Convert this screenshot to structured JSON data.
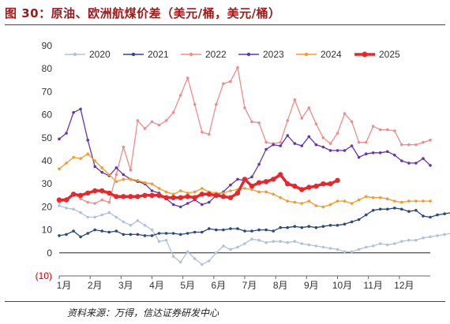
{
  "header": {
    "title": "图 30：原油、欧洲航煤价差（美元/桶，美元/桶）",
    "source": "资料来源：万得，信达证券研发中心"
  },
  "chart_data": {
    "type": "line",
    "ylim": [
      -10,
      90
    ],
    "yticks": [
      "(10)",
      "0",
      "10",
      "20",
      "30",
      "40",
      "50",
      "60",
      "70",
      "80",
      "90"
    ],
    "xticks": [
      "1月",
      "2月",
      "3月",
      "4月",
      "5月",
      "6月",
      "7月",
      "8月",
      "9月",
      "10月",
      "11月",
      "12月"
    ],
    "legend_position": "top",
    "x_unit": "week of year",
    "series": [
      {
        "name": "2020",
        "color": "#b4c2d8",
        "marker": "circle",
        "values": [
          20.5,
          19.5,
          19.0,
          17.5,
          15.5,
          15.5,
          16.5,
          17.5,
          15.5,
          13.5,
          12.0,
          14.0,
          12.0,
          10.0,
          5.0,
          5.5,
          -1.5,
          -4.0,
          0.5,
          -2.5,
          -5.0,
          -3.5,
          0.0,
          3.0,
          1.5,
          2.5,
          4.0,
          6.0,
          5.5,
          4.5,
          5.0,
          5.0,
          4.5,
          5.0,
          4.0,
          3.5,
          3.0,
          2.5,
          2.0,
          1.5,
          0.5,
          0.5,
          1.5,
          2.5,
          3.0,
          4.0,
          3.5,
          4.0,
          5.0,
          5.5,
          5.5,
          6.5,
          7.0,
          7.5,
          8.0,
          8.5,
          9.5
        ]
      },
      {
        "name": "2021",
        "color": "#2e4a7c",
        "marker": "circle",
        "values": [
          7.5,
          8.0,
          9.5,
          7.0,
          8.5,
          10.0,
          9.5,
          9.0,
          9.5,
          8.0,
          8.0,
          8.0,
          7.5,
          7.5,
          8.5,
          8.5,
          8.5,
          8.0,
          8.5,
          9.0,
          9.0,
          10.5,
          10.0,
          10.0,
          10.5,
          10.5,
          9.5,
          9.5,
          10.0,
          10.0,
          9.5,
          11.0,
          11.0,
          11.5,
          11.0,
          11.5,
          11.0,
          11.5,
          12.0,
          12.0,
          12.5,
          13.5,
          14.5,
          16.5,
          18.5,
          19.0,
          19.0,
          19.5,
          19.0,
          18.0,
          18.5,
          16.0,
          15.5,
          16.5,
          17.0,
          17.5,
          17.0
        ]
      },
      {
        "name": "2022",
        "color": "#f08c8c",
        "marker": "circle",
        "values": [
          22.0,
          23.0,
          26.0,
          23.5,
          22.0,
          21.5,
          23.0,
          22.0,
          34.0,
          46.0,
          36.0,
          57.5,
          54.0,
          57.0,
          55.5,
          57.5,
          61.0,
          68.5,
          76.0,
          64.5,
          52.5,
          51.5,
          64.5,
          73.5,
          74.5,
          80.5,
          63.0,
          57.0,
          56.5,
          48.0,
          47.5,
          48.0,
          57.5,
          66.5,
          58.5,
          63.0,
          56.0,
          50.0,
          47.5,
          52.0,
          60.5,
          57.0,
          48.0,
          48.0,
          55.0,
          53.5,
          53.5,
          53.0,
          47.0,
          47.0,
          47.0,
          48.0,
          49.0
        ]
      },
      {
        "name": "2023",
        "color": "#6a35a8",
        "marker": "circle",
        "values": [
          49.5,
          52.0,
          61.0,
          62.5,
          49.0,
          37.5,
          35.0,
          33.5,
          37.0,
          34.0,
          32.0,
          31.0,
          30.0,
          27.0,
          26.0,
          23.5,
          21.0,
          20.0,
          21.5,
          23.0,
          21.0,
          22.0,
          25.0,
          26.5,
          29.5,
          32.0,
          31.5,
          33.0,
          38.5,
          45.0,
          47.0,
          46.5,
          51.0,
          47.5,
          46.5,
          50.5,
          47.0,
          46.0,
          44.5,
          44.5,
          44.5,
          46.5,
          41.5,
          43.0,
          43.5,
          43.5,
          44.0,
          42.5,
          40.0,
          39.0,
          39.0,
          41.0,
          38.0
        ]
      },
      {
        "name": "2024",
        "color": "#f39c2b",
        "marker": "circle",
        "values": [
          36.5,
          39.0,
          41.5,
          41.0,
          43.0,
          40.0,
          37.0,
          34.0,
          31.0,
          32.0,
          32.0,
          31.5,
          30.5,
          30.0,
          28.0,
          26.5,
          25.5,
          27.0,
          26.0,
          26.5,
          28.0,
          26.5,
          26.0,
          26.0,
          27.0,
          27.5,
          28.0,
          27.5,
          26.5,
          26.5,
          25.5,
          24.0,
          22.5,
          22.0,
          21.5,
          22.5,
          20.5,
          20.0,
          21.0,
          22.5,
          22.5,
          21.5,
          23.0,
          24.5,
          24.0,
          24.0,
          23.5,
          22.5,
          22.0,
          22.5,
          22.5,
          22.5,
          22.5
        ]
      },
      {
        "name": "2025",
        "color": "#e8262b",
        "marker": "circle",
        "values": [
          23.0,
          23.0,
          25.5,
          25.0,
          26.0,
          27.0,
          27.0,
          26.0,
          24.5,
          24.5,
          24.5,
          24.5,
          25.0,
          25.0,
          25.0,
          24.0,
          24.0,
          24.0,
          24.5,
          24.0,
          25.5,
          25.5,
          25.0,
          24.5,
          24.0,
          26.0,
          32.0,
          29.0,
          30.5,
          31.0,
          32.0,
          34.0,
          30.0,
          29.0,
          27.5,
          28.5,
          29.0,
          30.0,
          30.0,
          31.5
        ]
      }
    ]
  }
}
